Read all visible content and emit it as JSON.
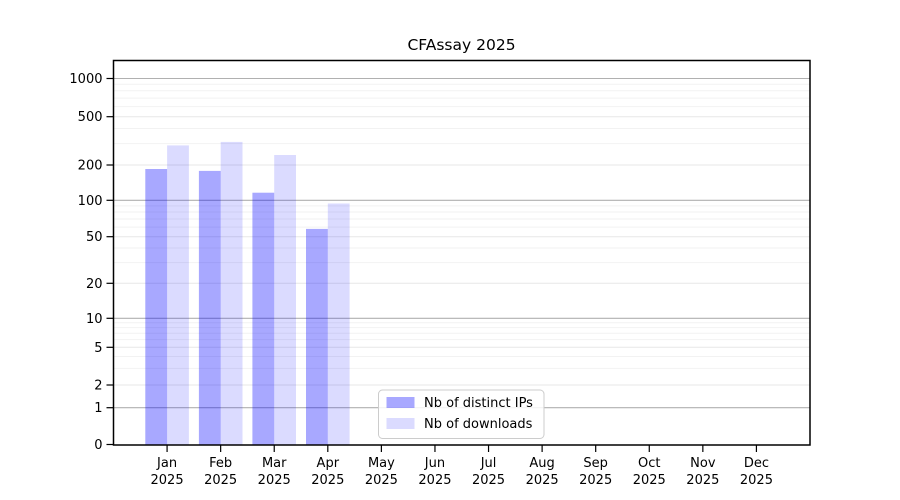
{
  "chart_data": {
    "type": "bar",
    "title": "CFAssay 2025",
    "categories": [
      {
        "month": "Jan",
        "year": "2025"
      },
      {
        "month": "Feb",
        "year": "2025"
      },
      {
        "month": "Mar",
        "year": "2025"
      },
      {
        "month": "Apr",
        "year": "2025"
      },
      {
        "month": "May",
        "year": "2025"
      },
      {
        "month": "Jun",
        "year": "2025"
      },
      {
        "month": "Jul",
        "year": "2025"
      },
      {
        "month": "Aug",
        "year": "2025"
      },
      {
        "month": "Sep",
        "year": "2025"
      },
      {
        "month": "Oct",
        "year": "2025"
      },
      {
        "month": "Nov",
        "year": "2025"
      },
      {
        "month": "Dec",
        "year": "2025"
      }
    ],
    "series": [
      {
        "name": "Nb of distinct IPs",
        "color": "#0000ff",
        "fill_opacity": 0.34,
        "values": [
          185,
          178,
          116,
          58,
          0,
          0,
          0,
          0,
          0,
          0,
          0,
          0
        ]
      },
      {
        "name": "Nb of downloads",
        "color": "#0000ff",
        "fill_opacity": 0.14,
        "values": [
          290,
          310,
          242,
          94,
          0,
          0,
          0,
          0,
          0,
          0,
          0,
          0
        ]
      }
    ],
    "y_axis": {
      "scale": "log-like with 0 baseline",
      "ticks": [
        0,
        1,
        2,
        5,
        10,
        20,
        50,
        100,
        200,
        500,
        1000
      ],
      "minor_gridlines": [
        3,
        4,
        6,
        7,
        8,
        9,
        30,
        40,
        60,
        70,
        80,
        90,
        300,
        400,
        600,
        700,
        800,
        900
      ]
    },
    "legend": {
      "position": "inside bottom, left of center",
      "entries": [
        "Nb of distinct IPs",
        "Nb of downloads"
      ]
    },
    "grid": true,
    "colors": {
      "grid_minor": "#f2f2f2",
      "grid_labeled": "#e7e7e7",
      "grid_power10": "#b0b0b0",
      "axis": "#000000",
      "text": "#000000",
      "legend_border": "#cccccc",
      "background": "#ffffff"
    }
  }
}
